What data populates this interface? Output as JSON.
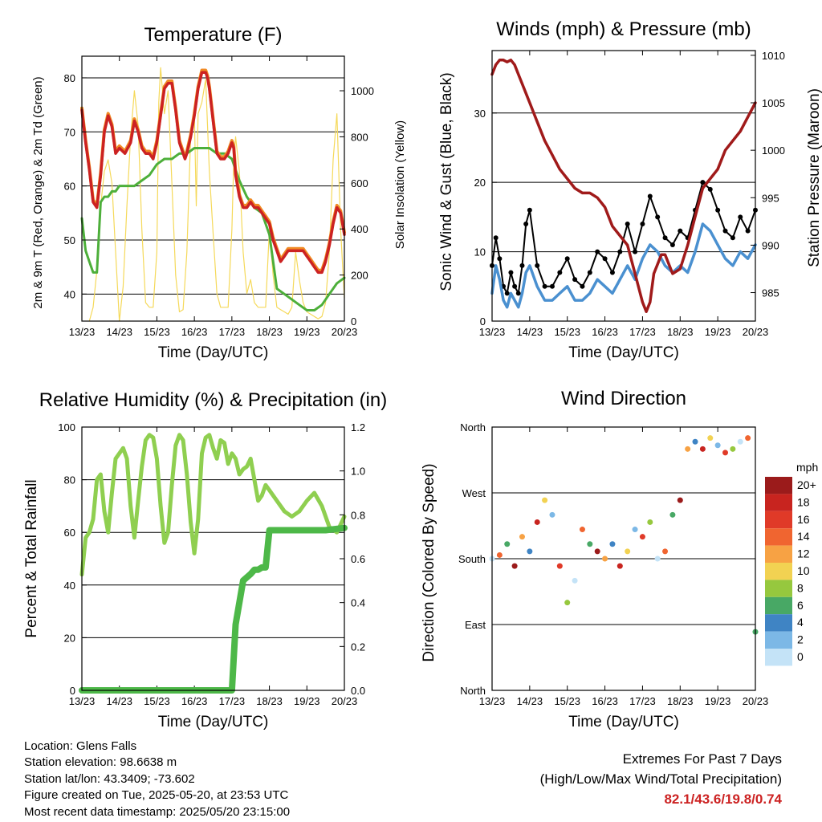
{
  "x_ticks": [
    "13/23",
    "14/23",
    "15/23",
    "16/23",
    "17/23",
    "18/23",
    "19/23",
    "20/23"
  ],
  "x_label": "Time (Day/UTC)",
  "footer": {
    "location": "Location: Glens Falls",
    "elevation": "Station elevation: 98.6638 m",
    "latlon": "Station lat/lon: 43.3409; -73.602",
    "created": "Figure created on Tue, 2025-05-20, at 23:53 UTC",
    "recent": "Most recent data timestamp: 2025/05/20 23:15:00"
  },
  "extremes": {
    "title": "Extremes For Past 7 Days",
    "subtitle": "(High/Low/Max Wind/Total Precipitation)",
    "values": "82.1/43.6/19.8/0.74",
    "color": "#cc2222"
  },
  "colors": {
    "temp_2m": "#cc2222",
    "temp_9m": "#f08a24",
    "dewpoint": "#4daf3a",
    "solar": "#f5d95a",
    "gust": "#000000",
    "wind": "#4a90d0",
    "pressure": "#a01a1a",
    "rh": "#8fcf50",
    "precip": "#4db848"
  },
  "chart_data": [
    {
      "id": "temperature",
      "type": "line",
      "title": "Temperature (F)",
      "xlabel": "Time (Day/UTC)",
      "ylabel": "2m & 9m T (Red, Orange) & 2m Td (Green)",
      "ylabel_right": "Solar Insolation (Yellow)",
      "xlim": [
        0,
        7
      ],
      "ylim": [
        35,
        84
      ],
      "ylim_right": [
        0,
        1150
      ],
      "yticks": [
        40,
        50,
        60,
        70,
        80
      ],
      "yticks_right": [
        0,
        200,
        400,
        600,
        800,
        1000
      ],
      "grid": true,
      "series": [
        {
          "x": [
            0,
            0.1,
            0.2,
            0.3,
            0.4,
            0.5,
            0.6,
            0.7,
            0.8,
            0.9,
            1.0,
            1.15,
            1.3,
            1.4,
            1.5,
            1.6,
            1.7,
            1.8,
            1.9,
            2.0,
            2.1,
            2.2,
            2.3,
            2.4,
            2.5,
            2.6,
            2.7,
            2.75,
            2.8,
            2.9,
            3.0,
            3.1,
            3.2,
            3.3,
            3.35,
            3.4,
            3.5,
            3.6,
            3.7,
            3.8,
            3.9,
            4.0,
            4.05,
            4.1,
            4.2,
            4.3,
            4.4,
            4.5,
            4.6,
            4.7,
            4.8,
            4.9,
            5.0,
            5.1,
            5.2,
            5.3,
            5.4,
            5.5,
            5.6,
            5.7,
            5.8,
            5.9,
            6.0,
            6.1,
            6.2,
            6.3,
            6.4,
            6.5,
            6.6,
            6.7,
            6.8,
            6.9,
            7.0
          ],
          "y": [
            74,
            68,
            63,
            57,
            56,
            62,
            70,
            73,
            71,
            66,
            67,
            66,
            68,
            72,
            70,
            67,
            66,
            66,
            65,
            68,
            73,
            78,
            79,
            79,
            74,
            68,
            66,
            65,
            66,
            69,
            73,
            78,
            81,
            81,
            80,
            78,
            72,
            66,
            65,
            65,
            66,
            68,
            67,
            62,
            58,
            56,
            56,
            57,
            56,
            56,
            55,
            54,
            53,
            50,
            48,
            46,
            47,
            48,
            48,
            48,
            48,
            48,
            47,
            46,
            45,
            44,
            44,
            46,
            49,
            53,
            56,
            55,
            51
          ]
        },
        {
          "x": [
            0,
            0.1,
            0.2,
            0.3,
            0.4,
            0.5,
            0.6,
            0.7,
            0.8,
            0.9,
            1.0,
            1.2,
            1.4,
            1.6,
            1.8,
            2.0,
            2.2,
            2.4,
            2.6,
            2.8,
            3.0,
            3.2,
            3.4,
            3.6,
            3.8,
            4.0,
            4.2,
            4.4,
            4.6,
            4.8,
            5.0,
            5.2,
            5.4,
            5.6,
            5.8,
            6.0,
            6.2,
            6.4,
            6.6,
            6.8,
            7.0
          ],
          "y": [
            54,
            48,
            46,
            44,
            44,
            57,
            58,
            58,
            59,
            59,
            60,
            60,
            60,
            61,
            62,
            64,
            65,
            65,
            66,
            66,
            67,
            67,
            67,
            66,
            66,
            65,
            61,
            58,
            56,
            55,
            51,
            41,
            40,
            39,
            38,
            37,
            37,
            38,
            40,
            42,
            43
          ]
        },
        {
          "x": [
            0.2,
            0.3,
            0.4,
            0.5,
            0.6,
            0.7,
            0.8,
            0.9,
            1.0,
            1.1,
            1.2,
            1.3,
            1.4,
            1.5,
            1.6,
            1.7,
            1.8,
            1.9,
            2.0,
            2.05,
            2.1,
            2.2,
            2.3,
            2.4,
            2.5,
            2.6,
            2.7,
            2.8,
            2.9,
            3.0,
            3.05,
            3.1,
            3.2,
            3.3,
            3.4,
            3.5,
            3.6,
            3.7,
            3.8,
            3.9,
            4.0,
            4.05,
            4.1,
            4.2,
            4.3,
            4.4,
            4.5,
            4.6,
            4.7,
            4.8,
            4.9,
            5.0,
            5.1,
            5.2,
            5.3,
            5.4,
            5.5,
            5.6,
            5.7,
            5.8,
            5.9,
            6.0,
            6.1,
            6.2,
            6.3,
            6.4,
            6.5,
            6.6,
            6.7,
            6.8,
            6.9,
            7.0
          ],
          "y": [
            0,
            60,
            220,
            500,
            650,
            700,
            600,
            300,
            0,
            150,
            500,
            800,
            1000,
            850,
            400,
            80,
            60,
            60,
            300,
            950,
            1100,
            900,
            1000,
            600,
            200,
            40,
            50,
            300,
            800,
            900,
            500,
            900,
            950,
            1050,
            650,
            380,
            120,
            60,
            60,
            60,
            400,
            700,
            800,
            650,
            300,
            120,
            180,
            80,
            60,
            60,
            60,
            400,
            200,
            60,
            50,
            40,
            30,
            60,
            300,
            180,
            80,
            40,
            30,
            20,
            10,
            20,
            80,
            300,
            700,
            900,
            400,
            100
          ]
        }
      ]
    },
    {
      "id": "winds",
      "type": "line",
      "title": "Winds (mph) & Pressure (mb)",
      "xlabel": "Time (Day/UTC)",
      "ylabel": "Sonic Wind & Gust (Blue, Black)",
      "ylabel_right": "Station Pressure (Maroon)",
      "xlim": [
        0,
        7
      ],
      "ylim": [
        0,
        39
      ],
      "ylim_right": [
        982,
        1010.5
      ],
      "yticks": [
        0,
        10,
        20,
        30
      ],
      "yticks_right": [
        985,
        990,
        995,
        1000,
        1005,
        1010
      ],
      "grid": true,
      "series": [
        {
          "x": [
            0,
            0.1,
            0.2,
            0.3,
            0.4,
            0.5,
            0.6,
            0.7,
            0.8,
            0.9,
            1.0,
            1.2,
            1.4,
            1.6,
            1.8,
            2.0,
            2.2,
            2.4,
            2.6,
            2.8,
            3.0,
            3.2,
            3.4,
            3.6,
            3.8,
            4.0,
            4.2,
            4.4,
            4.6,
            4.8,
            5.0,
            5.2,
            5.4,
            5.6,
            5.8,
            6.0,
            6.2,
            6.4,
            6.6,
            6.8,
            7.0
          ],
          "y": [
            4,
            8,
            6,
            3,
            2,
            4,
            3,
            2,
            4,
            7,
            8,
            5,
            3,
            3,
            4,
            5,
            3,
            3,
            4,
            6,
            5,
            4,
            6,
            8,
            6,
            9,
            11,
            10,
            8,
            7,
            8,
            7,
            10,
            14,
            13,
            11,
            9,
            8,
            10,
            9,
            11
          ]
        },
        {
          "x": [
            0,
            0.1,
            0.2,
            0.3,
            0.4,
            0.5,
            0.6,
            0.7,
            0.8,
            0.9,
            1.0,
            1.2,
            1.4,
            1.6,
            1.8,
            2.0,
            2.2,
            2.4,
            2.6,
            2.8,
            3.0,
            3.2,
            3.4,
            3.6,
            3.8,
            4.0,
            4.2,
            4.4,
            4.6,
            4.8,
            5.0,
            5.2,
            5.4,
            5.6,
            5.8,
            6.0,
            6.2,
            6.4,
            6.6,
            6.8,
            7.0
          ],
          "y": [
            8,
            12,
            9,
            5,
            4,
            7,
            5,
            4,
            8,
            14,
            16,
            8,
            5,
            5,
            7,
            9,
            6,
            5,
            7,
            10,
            9,
            7,
            10,
            14,
            10,
            14,
            18,
            15,
            12,
            11,
            13,
            12,
            16,
            20,
            19,
            16,
            13,
            12,
            15,
            13,
            16
          ]
        },
        {
          "x": [
            0,
            0.1,
            0.2,
            0.3,
            0.4,
            0.5,
            0.6,
            0.7,
            0.8,
            0.9,
            1.0,
            1.2,
            1.4,
            1.6,
            1.8,
            2.0,
            2.2,
            2.4,
            2.6,
            2.8,
            3.0,
            3.2,
            3.4,
            3.6,
            3.8,
            4.0,
            4.1,
            4.2,
            4.3,
            4.4,
            4.5,
            4.6,
            4.8,
            5.0,
            5.2,
            5.4,
            5.6,
            5.8,
            6.0,
            6.2,
            6.4,
            6.6,
            6.8,
            7.0
          ],
          "y": [
            1008,
            1009,
            1009.5,
            1009.5,
            1009.3,
            1009.5,
            1009,
            1008,
            1007,
            1006,
            1005,
            1003,
            1001,
            999.5,
            998,
            997,
            996,
            995.5,
            995.5,
            995,
            994,
            992,
            991,
            990,
            987,
            984,
            983,
            984,
            987,
            988,
            989,
            989,
            987,
            987.5,
            990,
            993,
            996,
            997,
            998,
            1000,
            1001,
            1002,
            1003.5,
            1005
          ]
        }
      ]
    },
    {
      "id": "humidity",
      "type": "line",
      "title": "Relative Humidity (%) & Precipitation (in)",
      "xlabel": "Time (Day/UTC)",
      "ylabel": "Percent & Total Rainfall",
      "xlim": [
        0,
        7
      ],
      "ylim": [
        0,
        100
      ],
      "ylim_right": [
        0,
        1.2
      ],
      "yticks": [
        0,
        20,
        40,
        60,
        80,
        100
      ],
      "yticks_right": [
        "0.0",
        "0.2",
        "0.4",
        "0.6",
        "0.8",
        "1.0",
        "1.2"
      ],
      "grid": true,
      "series": [
        {
          "x": [
            0,
            0.1,
            0.2,
            0.3,
            0.4,
            0.5,
            0.6,
            0.7,
            0.8,
            0.9,
            1.0,
            1.1,
            1.2,
            1.3,
            1.4,
            1.5,
            1.6,
            1.7,
            1.8,
            1.9,
            2.0,
            2.1,
            2.2,
            2.3,
            2.4,
            2.5,
            2.6,
            2.7,
            2.8,
            2.9,
            3.0,
            3.1,
            3.2,
            3.3,
            3.4,
            3.5,
            3.6,
            3.7,
            3.8,
            3.9,
            4.0,
            4.1,
            4.2,
            4.3,
            4.4,
            4.5,
            4.6,
            4.7,
            4.8,
            4.9,
            5.0,
            5.2,
            5.4,
            5.6,
            5.8,
            6.0,
            6.2,
            6.4,
            6.6,
            6.8,
            7.0
          ],
          "y": [
            44,
            58,
            60,
            65,
            80,
            82,
            68,
            60,
            75,
            88,
            90,
            92,
            88,
            70,
            58,
            72,
            85,
            95,
            97,
            96,
            88,
            70,
            56,
            60,
            78,
            93,
            97,
            95,
            82,
            64,
            52,
            65,
            90,
            96,
            97,
            92,
            88,
            95,
            94,
            86,
            90,
            88,
            82,
            84,
            85,
            88,
            80,
            72,
            74,
            78,
            76,
            72,
            68,
            66,
            68,
            72,
            75,
            70,
            62,
            60,
            66
          ]
        },
        {
          "x": [
            0,
            3.5,
            4.0,
            4.1,
            4.3,
            4.5,
            4.6,
            4.7,
            4.8,
            4.9,
            5.0,
            5.5,
            6.0,
            6.5,
            7.0
          ],
          "y": [
            0,
            0,
            0,
            0.3,
            0.5,
            0.53,
            0.55,
            0.55,
            0.56,
            0.56,
            0.73,
            0.73,
            0.73,
            0.73,
            0.74
          ]
        }
      ]
    },
    {
      "id": "direction",
      "type": "scatter",
      "title": "Wind Direction",
      "xlabel": "Time (Day/UTC)",
      "ylabel": "Direction (Colored By Speed)",
      "xlim": [
        0,
        7
      ],
      "ylim": [
        0,
        360
      ],
      "yticks": [
        "North",
        "East",
        "South",
        "West",
        "North"
      ],
      "legend_title": "mph",
      "legend_labels": [
        "20+",
        "18",
        "16",
        "14",
        "12",
        "10",
        "8",
        "6",
        "4",
        "2",
        "0"
      ],
      "legend_colors": [
        "#9b1b1b",
        "#c8241f",
        "#e03a28",
        "#f06530",
        "#f7a244",
        "#f2d252",
        "#96c83e",
        "#48a865",
        "#3f84c4",
        "#7cb8e6",
        "#c4e3f7"
      ],
      "series": [
        {
          "x": [
            0,
            0.2,
            0.4,
            0.6,
            0.8,
            1.0,
            1.2,
            1.4,
            1.6,
            1.8,
            2.0,
            2.2,
            2.4,
            2.6,
            2.8,
            3.0,
            3.2,
            3.4,
            3.6,
            3.8,
            4.0,
            4.2,
            4.4,
            4.6,
            4.8,
            5.0,
            5.2,
            5.4,
            5.6,
            5.8,
            6.0,
            6.2,
            6.4,
            6.6,
            6.8,
            7.0
          ],
          "y": [
            180,
            185,
            200,
            170,
            210,
            190,
            230,
            260,
            240,
            170,
            120,
            150,
            220,
            200,
            190,
            180,
            200,
            170,
            190,
            220,
            210,
            230,
            180,
            190,
            240,
            260,
            330,
            340,
            330,
            345,
            335,
            325,
            330,
            340,
            345,
            80
          ]
        }
      ]
    }
  ]
}
